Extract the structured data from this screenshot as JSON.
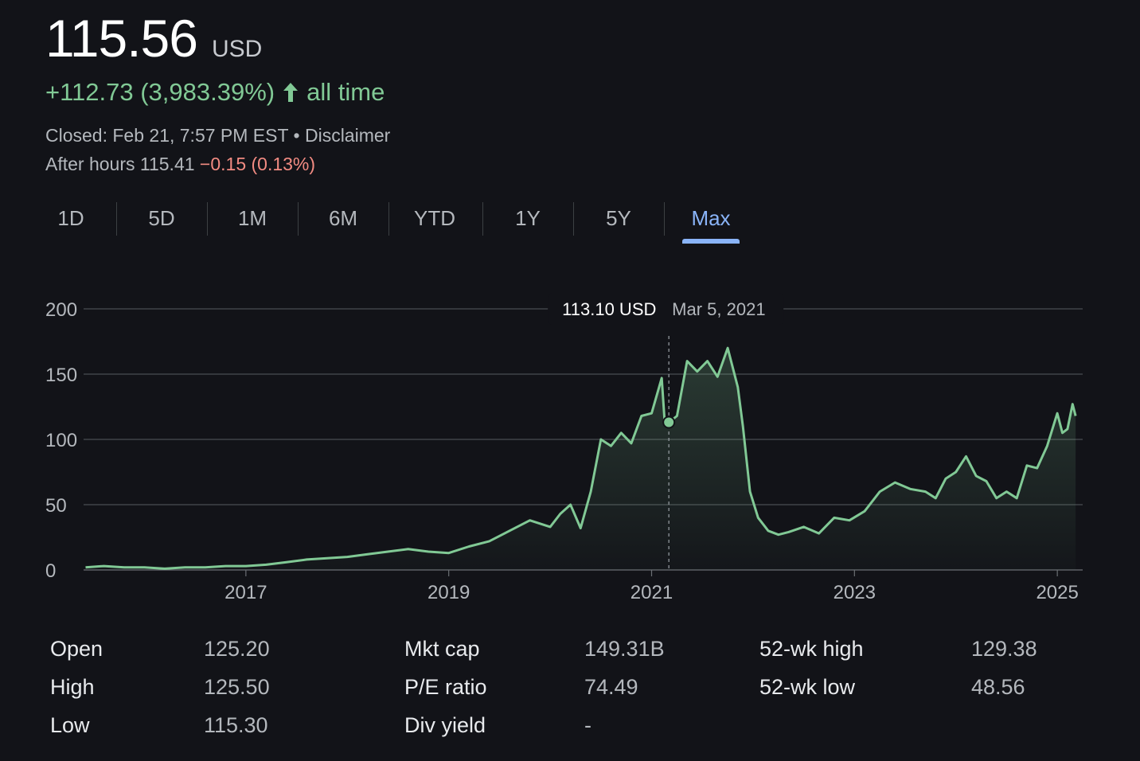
{
  "header": {
    "price": "115.56",
    "currency": "USD",
    "change": "+112.73 (3,983.39%)",
    "change_period": "all time",
    "closed_text": "Closed: Feb 21, 7:57 PM EST",
    "separator": "•",
    "disclaimer": "Disclaimer",
    "after_hours_label": "After hours 115.41",
    "after_hours_change": "−0.15 (0.13%)"
  },
  "colors": {
    "background": "#121318",
    "line": "#81c995",
    "positive": "#81c995",
    "negative": "#f28b82",
    "accent": "#8ab4f8"
  },
  "tabs": [
    {
      "label": "1D",
      "active": false
    },
    {
      "label": "5D",
      "active": false
    },
    {
      "label": "1M",
      "active": false
    },
    {
      "label": "6M",
      "active": false
    },
    {
      "label": "YTD",
      "active": false
    },
    {
      "label": "1Y",
      "active": false
    },
    {
      "label": "5Y",
      "active": false
    },
    {
      "label": "Max",
      "active": true
    }
  ],
  "chart_data": {
    "type": "area",
    "title": "",
    "xlabel": "",
    "ylabel": "",
    "y_ticks": [
      "0",
      "50",
      "100",
      "150",
      "200"
    ],
    "ylim": [
      0,
      200
    ],
    "x_ticks": [
      "2017",
      "2019",
      "2021",
      "2023",
      "2025"
    ],
    "xlim": [
      2015.4,
      2025.25
    ],
    "grid": true,
    "tooltip": {
      "value": "113.10 USD",
      "date": "Mar 5, 2021",
      "x": 2021.17,
      "y": 113.1
    },
    "series": [
      {
        "x": [
          2015.42,
          2015.6,
          2015.8,
          2016.0,
          2016.2,
          2016.4,
          2016.6,
          2016.8,
          2017.0,
          2017.2,
          2017.4,
          2017.6,
          2017.8,
          2018.0,
          2018.2,
          2018.4,
          2018.6,
          2018.8,
          2019.0,
          2019.2,
          2019.4,
          2019.6,
          2019.8,
          2020.0,
          2020.1,
          2020.2,
          2020.3,
          2020.4,
          2020.5,
          2020.6,
          2020.7,
          2020.8,
          2020.9,
          2021.0,
          2021.1,
          2021.13,
          2021.17,
          2021.25,
          2021.35,
          2021.45,
          2021.55,
          2021.65,
          2021.75,
          2021.85,
          2021.9,
          2021.97,
          2022.05,
          2022.15,
          2022.25,
          2022.35,
          2022.5,
          2022.65,
          2022.8,
          2022.95,
          2023.1,
          2023.25,
          2023.4,
          2023.55,
          2023.7,
          2023.8,
          2023.9,
          2024.0,
          2024.1,
          2024.2,
          2024.3,
          2024.4,
          2024.5,
          2024.6,
          2024.7,
          2024.8,
          2024.9,
          2025.0,
          2025.05,
          2025.1,
          2025.15,
          2025.18
        ],
        "values": [
          2,
          3,
          2,
          2,
          1,
          2,
          2,
          3,
          3,
          4,
          6,
          8,
          9,
          10,
          12,
          14,
          16,
          14,
          13,
          18,
          22,
          30,
          38,
          33,
          43,
          50,
          32,
          60,
          100,
          95,
          105,
          97,
          118,
          120,
          147,
          112,
          113,
          118,
          160,
          152,
          160,
          148,
          170,
          140,
          110,
          60,
          40,
          30,
          27,
          29,
          33,
          28,
          40,
          38,
          45,
          60,
          67,
          62,
          60,
          55,
          70,
          75,
          87,
          72,
          68,
          55,
          60,
          55,
          80,
          78,
          95,
          120,
          105,
          108,
          127,
          118
        ]
      }
    ]
  },
  "stats": [
    {
      "label": "Open",
      "value": "125.20"
    },
    {
      "label": "High",
      "value": "125.50"
    },
    {
      "label": "Low",
      "value": "115.30"
    },
    {
      "label": "Mkt cap",
      "value": "149.31B"
    },
    {
      "label": "P/E ratio",
      "value": "74.49"
    },
    {
      "label": "Div yield",
      "value": "-"
    },
    {
      "label": "52-wk high",
      "value": "129.38"
    },
    {
      "label": "52-wk low",
      "value": "48.56"
    }
  ]
}
